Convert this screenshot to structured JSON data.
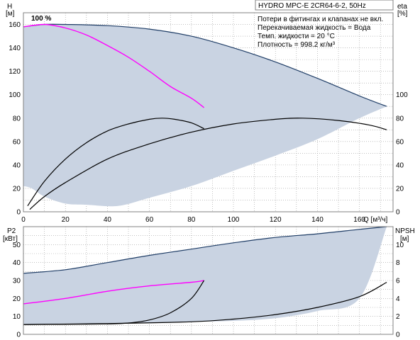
{
  "chart_data": [
    {
      "type": "line",
      "panel": "performance",
      "title": "HYDRO MPC-E 2CR64-6-2, 50Hz",
      "notes": [
        "Потери в фитингах и клапанах не вкл.",
        "Перекачиваемая жидкость = Вода",
        "Темп. жидкости = 20 °C",
        "Плотность = 998.2 кг/м³"
      ],
      "speed_label": "100 %",
      "xlabel": "Q [м³/ч]",
      "ylabel_left": [
        "H",
        "[м]"
      ],
      "ylabel_right": [
        "eta",
        "[%]"
      ],
      "xlim": [
        0,
        176
      ],
      "ylim_left": [
        0,
        170
      ],
      "ylim_right": [
        0,
        170
      ],
      "xticks": [
        0,
        20,
        40,
        60,
        80,
        100,
        120,
        140,
        160
      ],
      "yticks_left": [
        0,
        20,
        40,
        60,
        80,
        100,
        120,
        140,
        160
      ],
      "yticks_right": [
        0,
        20,
        40,
        60,
        80,
        100
      ],
      "grid": true,
      "colors": {
        "envelope": "#c9d3e2",
        "envelope_edge": "#1f3d66",
        "pump_curve": "#ff00ff",
        "eta": "#000000"
      },
      "series": [
        {
          "role": "envelope",
          "axis": "left",
          "x": [
            0,
            10,
            20,
            40,
            60,
            80,
            100,
            120,
            140,
            160,
            173,
            160,
            140,
            120,
            100,
            80,
            60,
            45,
            30,
            20,
            10,
            4,
            0
          ],
          "y": [
            158,
            160,
            160,
            159,
            156,
            150,
            140,
            128,
            114,
            99,
            90,
            80,
            62,
            48,
            35,
            22,
            12,
            5,
            6,
            7,
            13,
            20,
            22
          ]
        },
        {
          "role": "pump_curve",
          "axis": "left",
          "x": [
            0,
            10,
            20,
            30,
            40,
            50,
            60,
            70,
            80,
            86
          ],
          "y": [
            158,
            160,
            157,
            151,
            142,
            132,
            120,
            107,
            97,
            89
          ]
        },
        {
          "role": "eta",
          "axis": "right",
          "x": [
            2,
            10,
            20,
            30,
            40,
            50,
            60,
            66,
            72,
            80,
            86
          ],
          "y": [
            5,
            26,
            45,
            59,
            69,
            75,
            79,
            80,
            79,
            76,
            71
          ]
        },
        {
          "role": "eta",
          "axis": "right",
          "x": [
            3,
            10,
            20,
            40,
            60,
            80,
            100,
            120,
            133,
            150,
            165,
            173
          ],
          "y": [
            2,
            13,
            25,
            45,
            58,
            68,
            75,
            79,
            80,
            78,
            74,
            70
          ]
        }
      ]
    },
    {
      "type": "line",
      "panel": "power_npsh",
      "xlabel": "",
      "ylabel_left": [
        "P2",
        "[кВт]"
      ],
      "ylabel_right": [
        "NPSH",
        "[м]"
      ],
      "xlim": [
        0,
        176
      ],
      "ylim_left": [
        0,
        60
      ],
      "ylim_right": [
        0,
        12
      ],
      "yticks_left": [
        0,
        10,
        20,
        30,
        40,
        50
      ],
      "yticks_right": [
        0,
        2,
        4,
        6,
        8,
        10
      ],
      "grid": true,
      "series": [
        {
          "role": "envelope",
          "axis": "left",
          "x": [
            0,
            20,
            40,
            60,
            80,
            100,
            120,
            140,
            160,
            173,
            160,
            140,
            120,
            100,
            80,
            60,
            40,
            20,
            0
          ],
          "y": [
            34,
            36,
            40,
            44,
            47.5,
            51,
            54,
            56,
            58.5,
            60,
            20,
            13,
            9,
            7.5,
            7,
            6.5,
            6.2,
            6,
            5.5
          ]
        },
        {
          "role": "power_curve",
          "axis": "left",
          "x": [
            0,
            20,
            40,
            60,
            80,
            86
          ],
          "y": [
            17,
            20,
            24,
            27,
            29,
            30
          ]
        },
        {
          "role": "npsh",
          "axis": "left",
          "x": [
            0,
            20,
            40,
            50,
            60,
            70,
            80,
            86
          ],
          "y": [
            5.5,
            5.6,
            5.8,
            6.3,
            8,
            12,
            20,
            30
          ]
        },
        {
          "role": "npsh",
          "axis": "left",
          "x": [
            0,
            40,
            80,
            100,
            120,
            140,
            160,
            173
          ],
          "y": [
            5.5,
            6,
            7,
            8.5,
            11,
            15,
            21,
            29
          ]
        }
      ]
    }
  ]
}
